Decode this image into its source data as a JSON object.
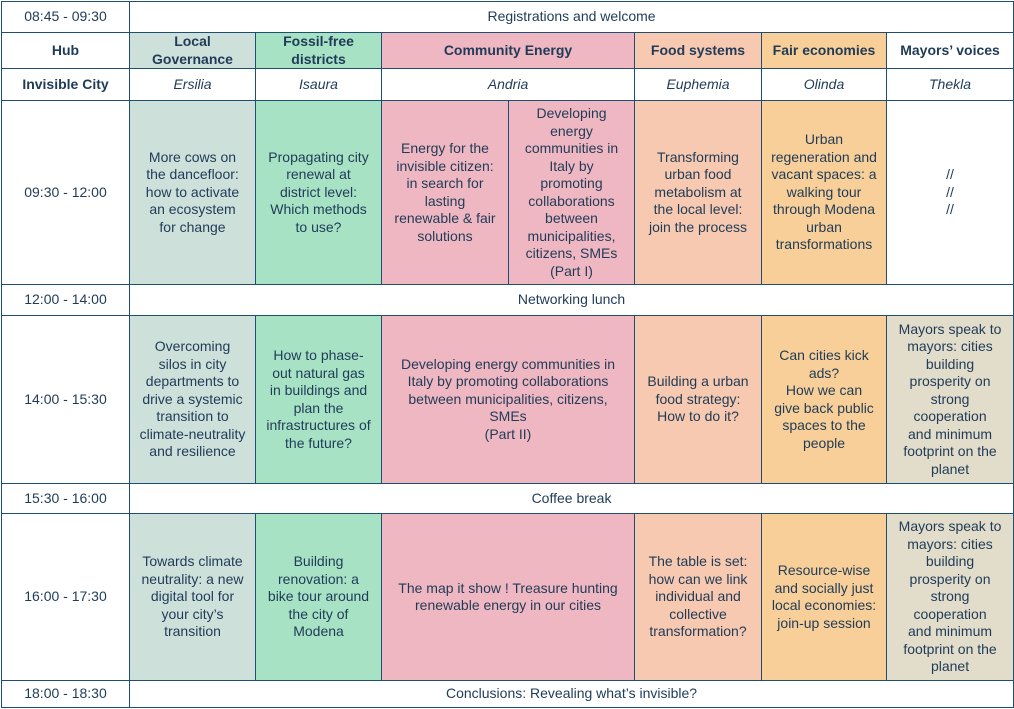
{
  "registration": {
    "time": "08:45 - 09:30",
    "title": "Registrations and welcome"
  },
  "header": {
    "hub_label": "Hub",
    "tracks": [
      "Local\nGovernance",
      "Fossil-free\ndistricts",
      "Community Energy",
      "Food systems",
      "Fair economies",
      "Mayors’ voices"
    ]
  },
  "cities": {
    "label": "Invisible City",
    "names": [
      "Ersilia",
      "Isaura",
      "Andria",
      "Euphemia",
      "Olinda",
      "Thekla"
    ]
  },
  "session1": {
    "time": "09:30 - 12:00",
    "governance": "More cows on\nthe dancefloor:\nhow to activate\nan ecosystem\nfor change",
    "fossil": "Propagating city\nrenewal at\ndistrict level:\nWhich methods\nto use?",
    "community_a": "Energy for the\ninvisible citizen:\nin search for\nlasting\nrenewable & fair\nsolutions",
    "community_b": "Developing\nenergy\ncommunities in\nItaly by\npromoting\ncollaborations\nbetween\nmunicipalities,\ncitizens, SMEs\n(Part I)",
    "food": "Transforming\nurban food\nmetabolism at\nthe local level:\njoin the process",
    "fair": "Urban\nregeneration and\nvacant spaces: a\nwalking tour\nthrough Modena\nurban\ntransformations",
    "mayors": "//\n//\n//"
  },
  "lunch": {
    "time": "12:00 - 14:00",
    "title": "Networking lunch"
  },
  "session2": {
    "time": "14:00 - 15:30",
    "governance": "Overcoming\nsilos in city\ndepartments to\ndrive a systemic\ntransition to\nclimate-neutrality\nand resilience",
    "fossil": "How to phase-\nout natural gas\nin buildings and\nplan the\ninfrastructures of\nthe future?",
    "community": "Developing energy communities in\nItaly by promoting collaborations\nbetween municipalities, citizens,\nSMEs\n(Part II)",
    "food": "Building a urban\nfood strategy:\nHow to do it?",
    "fair": "Can cities kick\nads?\nHow we can\ngive back public\nspaces to the\npeople",
    "mayors": "Mayors speak to\nmayors: cities\nbuilding\nprosperity on\nstrong\ncooperation\nand  minimum\nfootprint on the\nplanet"
  },
  "coffee": {
    "time": "15:30 - 16:00",
    "title": "Coffee break"
  },
  "session3": {
    "time": "16:00 - 17:30",
    "governance": "Towards climate\nneutrality: a new\ndigital tool for\nyour city’s\ntransition",
    "fossil": "Building\nrenovation: a\nbike tour around\nthe city of\nModena",
    "community": "The map it show ! Treasure hunting\nrenewable energy in our cities",
    "food": "The table is set:\nhow can we link\nindividual and\ncollective\ntransformation?",
    "fair": "Resource-wise\nand socially just\nlocal economies:\njoin-up session",
    "mayors": "Mayors speak to\nmayors: cities\nbuilding\nprosperity on\nstrong\ncooperation\nand  minimum\nfootprint on the\nplanet"
  },
  "conclusions": {
    "time": "18:00 - 18:30",
    "title": "Conclusions: Revealing what’s invisible?"
  },
  "colors": {
    "border": "#1f4e73",
    "text": "#1f3b57",
    "local_governance": "#cde0da",
    "fossil_free": "#a8e2c5",
    "community_energy": "#efb7c1",
    "food_systems": "#f7c9b0",
    "fair_economies": "#f8cf98",
    "mayors_voices": "#e2dccb"
  }
}
